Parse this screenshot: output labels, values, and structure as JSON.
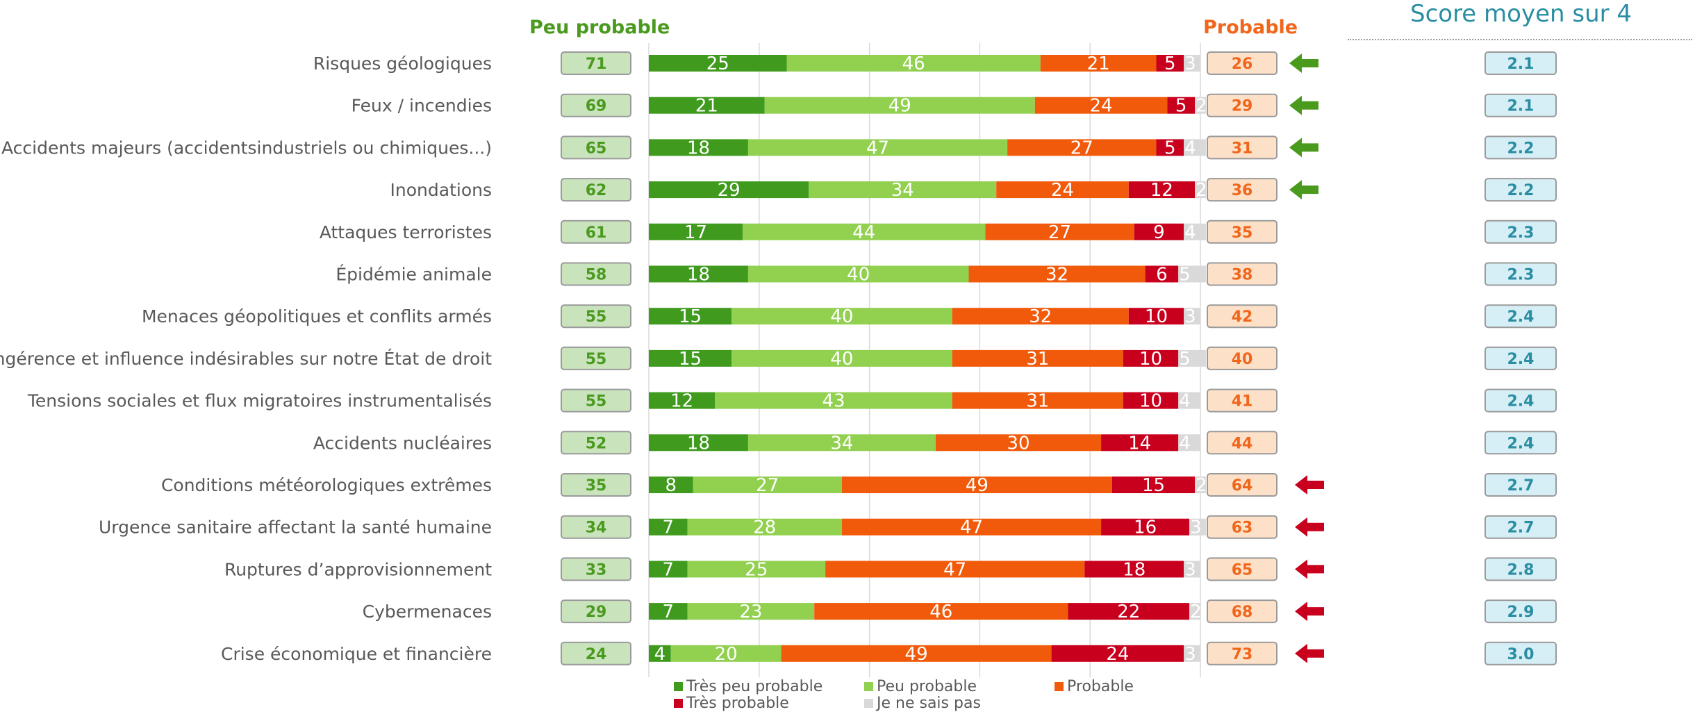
{
  "headers": {
    "left": "Peu probable",
    "right": "Probable",
    "score": "Score moyen sur 4"
  },
  "colors": {
    "tres_peu": "#3f9a1e",
    "peu": "#92d050",
    "probable": "#f05a0a",
    "tres": "#c8001e",
    "nsp": "#d9d9d9",
    "left_box_fill": "#c9e3bd",
    "left_box_text": "#4a9a1e",
    "right_box_fill": "#fde0c8",
    "right_box_text": "#f0661a",
    "score_box_fill": "#d6eef6",
    "score_box_text": "#2a8ea3",
    "arrow_green": "#4a9a1e",
    "arrow_red": "#c8001e"
  },
  "chart_data": {
    "type": "bar",
    "orientation": "horizontal",
    "stacked": true,
    "xlim": [
      0,
      100
    ],
    "categories": [
      "Risques géologiques",
      "Feux / incendies",
      "Accidents majeurs (accidentsindustriels ou chimiques...)",
      "Inondations",
      "Attaques terroristes",
      "Épidémie animale",
      "Menaces géopolitiques et conflits armés",
      "Ingérence et influence indésirables sur notre État de droit",
      "Tensions sociales et flux migratoires  instrumentalisés",
      "Accidents nucléaires",
      "Conditions météorologiques extrêmes",
      "Urgence sanitaire affectant la santé humaine ",
      "Ruptures d’approvisionnement ",
      "Cybermenaces",
      "Crise économique et financière"
    ],
    "series": [
      {
        "name": "Très peu probable",
        "color": "#3f9a1e",
        "values": [
          25,
          21,
          18,
          29,
          17,
          18,
          15,
          15,
          12,
          18,
          8,
          7,
          7,
          7,
          4
        ]
      },
      {
        "name": "Peu probable",
        "color": "#92d050",
        "values": [
          46,
          49,
          47,
          34,
          44,
          40,
          40,
          40,
          43,
          34,
          27,
          28,
          25,
          23,
          20
        ]
      },
      {
        "name": "Probable",
        "color": "#f05a0a",
        "values": [
          21,
          24,
          27,
          24,
          27,
          32,
          32,
          31,
          31,
          30,
          49,
          47,
          47,
          46,
          49
        ]
      },
      {
        "name": "Très probable",
        "color": "#c8001e",
        "values": [
          5,
          5,
          5,
          12,
          9,
          6,
          10,
          10,
          10,
          14,
          15,
          16,
          18,
          22,
          24
        ]
      },
      {
        "name": "Je ne sais pas",
        "color": "#d9d9d9",
        "values": [
          3,
          2,
          4,
          2,
          4,
          5,
          3,
          5,
          4,
          4,
          2,
          3,
          3,
          2,
          3
        ]
      }
    ],
    "peu_probable_total": [
      71,
      69,
      65,
      62,
      61,
      58,
      55,
      55,
      55,
      52,
      35,
      34,
      33,
      29,
      24
    ],
    "probable_total": [
      26,
      29,
      31,
      36,
      35,
      38,
      42,
      40,
      41,
      44,
      64,
      63,
      65,
      68,
      73
    ],
    "score_moyen": [
      "2.1",
      "2.1",
      "2.2",
      "2.2",
      "2.3",
      "2.3",
      "2.4",
      "2.4",
      "2.4",
      "2.4",
      "2.7",
      "2.7",
      "2.8",
      "2.9",
      "3.0"
    ],
    "arrows": [
      "left-green",
      "left-green",
      "left-green",
      "left-green",
      "none",
      "none",
      "none",
      "none",
      "none",
      "none",
      "left-red",
      "left-red",
      "left-red",
      "left-red",
      "left-red"
    ],
    "grid": true,
    "legend_position": "bottom"
  }
}
